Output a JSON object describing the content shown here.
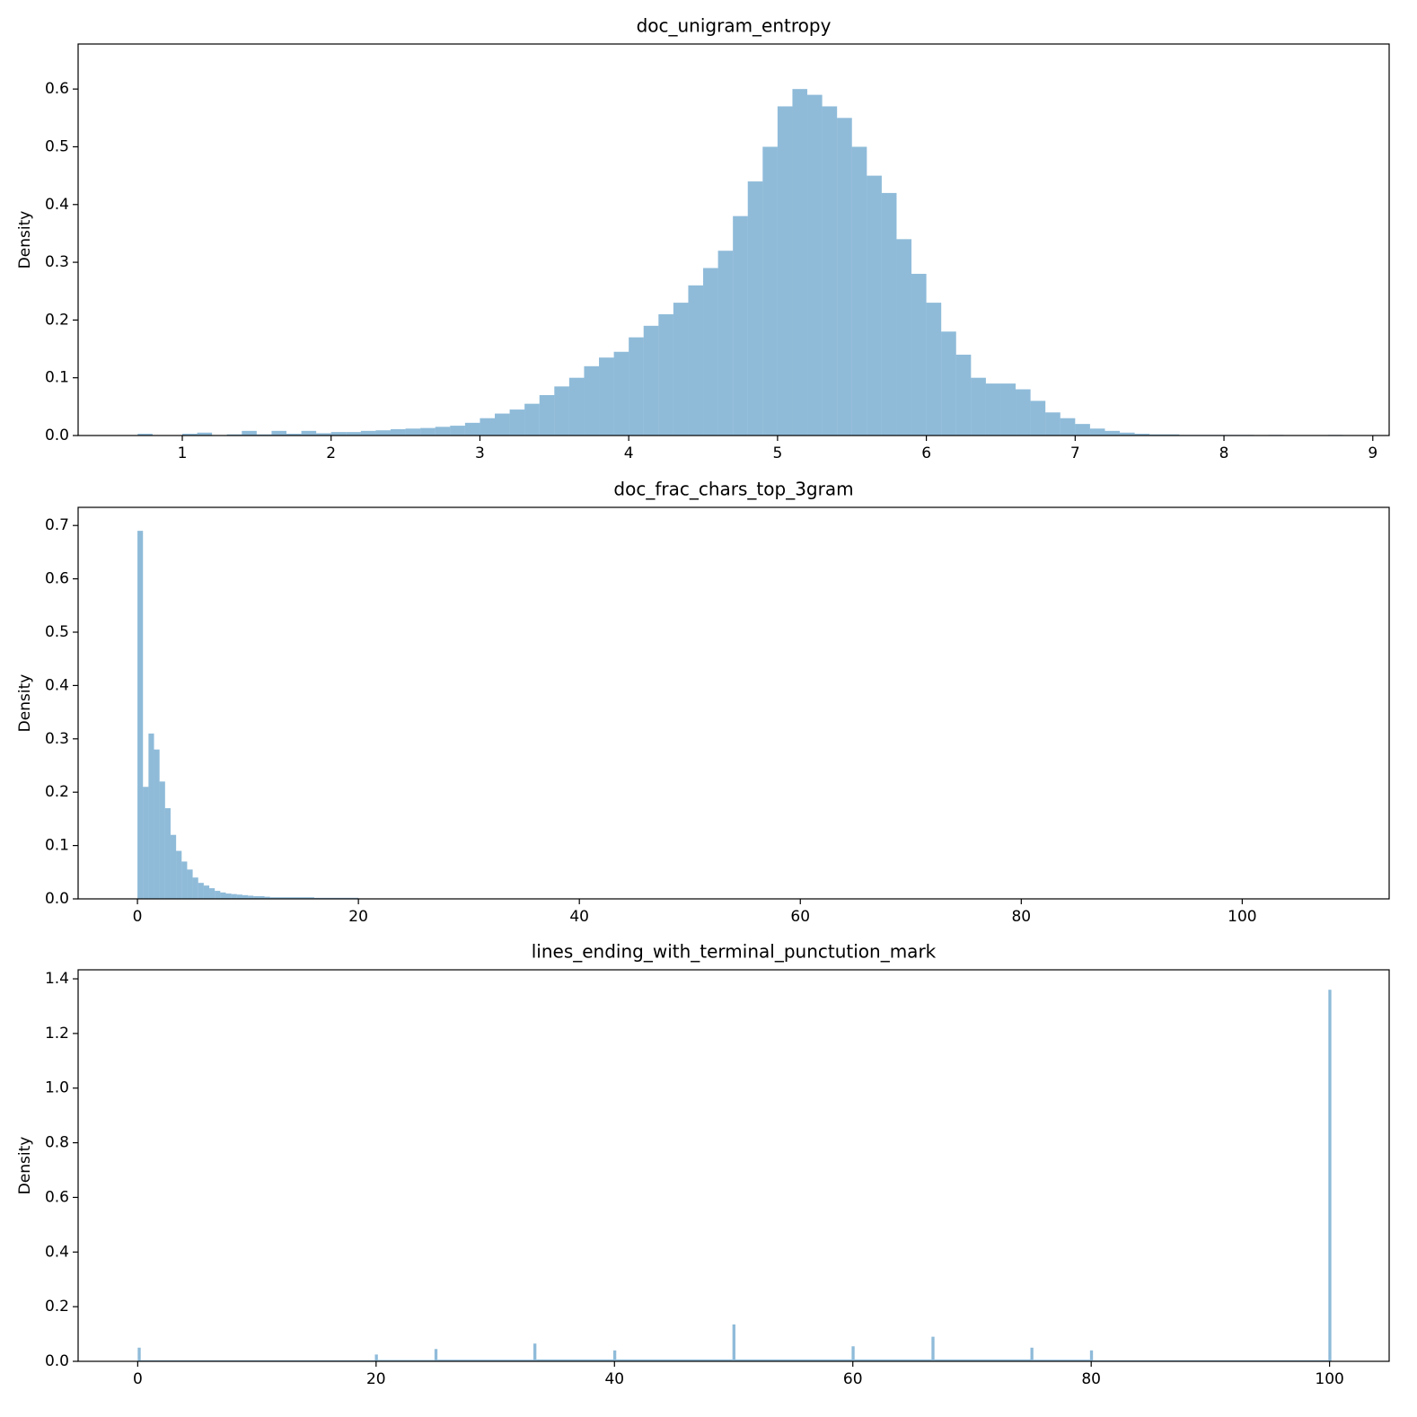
{
  "chart_data": [
    {
      "type": "histogram",
      "title": "doc_unigram_entropy",
      "ylabel": "Density",
      "color": "#1f77b4",
      "alpha": 0.5,
      "bins": [
        0.7,
        0.8,
        0.9,
        1.0,
        1.1,
        1.2,
        1.3,
        1.4,
        1.5,
        1.6,
        1.7,
        1.8,
        1.9,
        2.0,
        2.1,
        2.2,
        2.3,
        2.4,
        2.5,
        2.6,
        2.7,
        2.8,
        2.9,
        3.0,
        3.1,
        3.2,
        3.3,
        3.4,
        3.5,
        3.6,
        3.7,
        3.8,
        3.9,
        4.0,
        4.1,
        4.2,
        4.3,
        4.4,
        4.5,
        4.6,
        4.7,
        4.8,
        4.9,
        5.0,
        5.1,
        5.2,
        5.3,
        5.4,
        5.5,
        5.6,
        5.7,
        5.8,
        5.9,
        6.0,
        6.1,
        6.2,
        6.3,
        6.4,
        6.5,
        6.6,
        6.7,
        6.8,
        6.9,
        7.0,
        7.1,
        7.2,
        7.3,
        7.4,
        7.5,
        7.6,
        7.7,
        7.8,
        7.9,
        8.0,
        8.1,
        8.2,
        8.3,
        8.4,
        8.5,
        8.6,
        8.7,
        8.8
      ],
      "values": [
        0.003,
        0,
        0,
        0.003,
        0.005,
        0,
        0.002,
        0.008,
        0.002,
        0.008,
        0.003,
        0.008,
        0.004,
        0.006,
        0.006,
        0.008,
        0.009,
        0.011,
        0.012,
        0.013,
        0.015,
        0.017,
        0.022,
        0.03,
        0.038,
        0.045,
        0.055,
        0.07,
        0.085,
        0.1,
        0.12,
        0.135,
        0.145,
        0.17,
        0.19,
        0.21,
        0.23,
        0.26,
        0.29,
        0.32,
        0.38,
        0.44,
        0.5,
        0.57,
        0.6,
        0.59,
        0.57,
        0.55,
        0.5,
        0.45,
        0.42,
        0.34,
        0.28,
        0.23,
        0.18,
        0.14,
        0.1,
        0.09,
        0.09,
        0.08,
        0.06,
        0.04,
        0.03,
        0.02,
        0.012,
        0.008,
        0.005,
        0.003,
        0.002,
        0.002,
        0.001,
        0.001,
        0.001,
        0.001,
        0.001,
        0,
        0.001,
        0,
        0,
        0,
        0.001
      ],
      "xlim": [
        0.3,
        9.11
      ],
      "ylim": [
        0,
        0.678
      ],
      "xticks": [
        1,
        2,
        3,
        4,
        5,
        6,
        7,
        8,
        9
      ],
      "yticks": [
        {
          "value": 0,
          "label": "0.0"
        },
        0.1,
        0.2,
        0.3,
        0.4,
        0.5,
        0.6
      ]
    },
    {
      "type": "histogram",
      "title": "doc_frac_chars_top_3gram",
      "ylabel": "Density",
      "color": "#1f77b4",
      "alpha": 0.5,
      "bins": [
        0,
        0.5,
        1,
        1.5,
        2,
        2.5,
        3,
        3.5,
        4,
        4.5,
        5,
        5.5,
        6,
        6.5,
        7,
        7.5,
        8,
        8.5,
        9,
        9.5,
        10,
        10.5,
        11,
        11.5,
        12,
        16,
        20
      ],
      "values": [
        0.69,
        0.21,
        0.31,
        0.28,
        0.22,
        0.17,
        0.12,
        0.09,
        0.07,
        0.055,
        0.04,
        0.03,
        0.025,
        0.02,
        0.015,
        0.012,
        0.01,
        0.009,
        0.008,
        0.007,
        0.006,
        0.005,
        0.005,
        0.004,
        0.003,
        0.002
      ],
      "xlim": [
        -5.37,
        113.3
      ],
      "ylim": [
        0,
        0.734
      ],
      "xticks": [
        0,
        20,
        40,
        60,
        80,
        100
      ],
      "yticks": [
        {
          "value": 0,
          "label": "0.0"
        },
        0.1,
        0.2,
        0.3,
        0.4,
        0.5,
        0.6,
        0.7
      ]
    },
    {
      "type": "histogram",
      "title": "lines_ending_with_terminal_punctution_mark",
      "ylabel": "Density",
      "color": "#1f77b4",
      "alpha": 0.5,
      "bins": [
        0,
        0.25,
        19.9,
        20.15,
        24.9,
        25.15,
        33.2,
        33.45,
        39.9,
        40.15,
        49.9,
        50.15,
        59.9,
        60.15,
        66.6,
        66.85,
        74.9,
        75.15,
        79.9,
        80.15,
        99.9,
        100.15
      ],
      "values": [
        0.05,
        0.004,
        0.025,
        0.005,
        0.045,
        0.006,
        0.065,
        0.007,
        0.04,
        0.007,
        0.135,
        0.007,
        0.055,
        0.007,
        0.09,
        0.007,
        0.05,
        0.006,
        0.04,
        0.004,
        1.36
      ],
      "xlim": [
        -5,
        105
      ],
      "ylim": [
        0,
        1.433
      ],
      "xticks": [
        0,
        20,
        40,
        60,
        80,
        100
      ],
      "yticks": [
        {
          "value": 0,
          "label": "0.0"
        },
        0.2,
        0.4,
        0.6,
        0.8,
        {
          "value": 1,
          "label": "1.0"
        },
        1.2,
        1.4
      ]
    }
  ]
}
